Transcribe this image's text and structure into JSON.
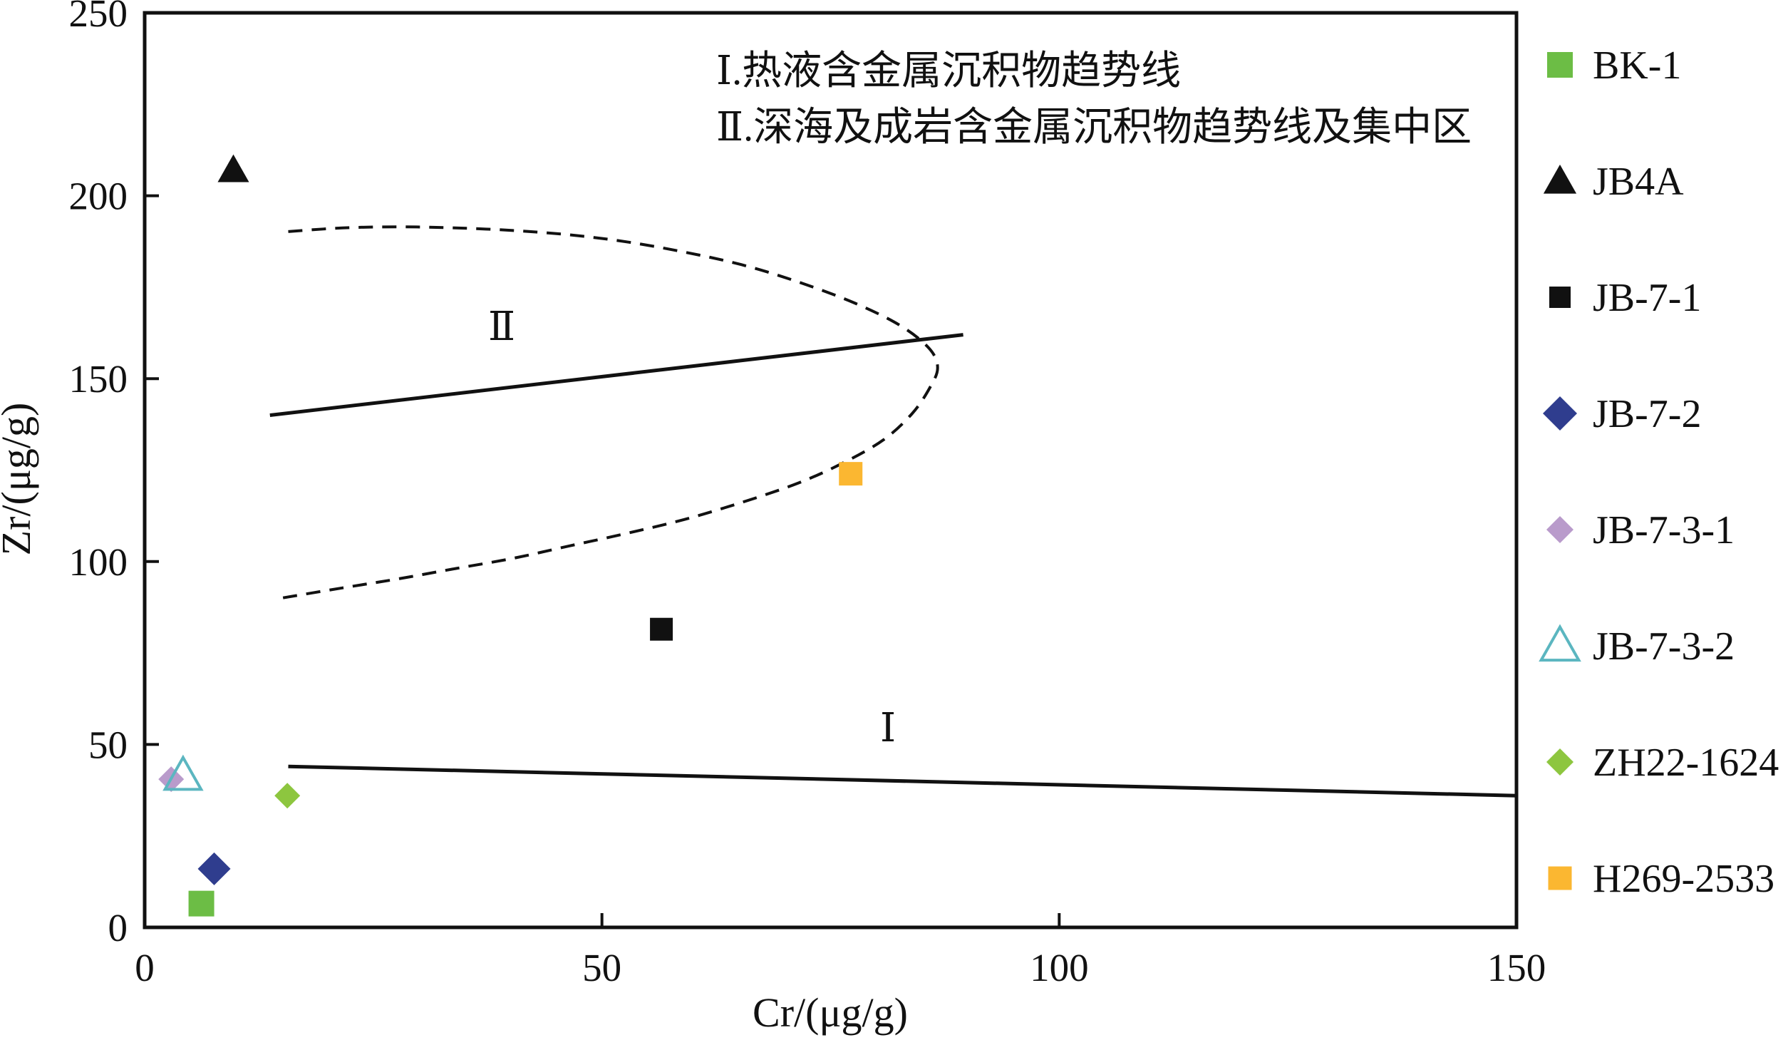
{
  "chart_data": {
    "type": "scatter",
    "xlabel": "Cr/(μg/g)",
    "ylabel": "Zr/(μg/g)",
    "xlim": [
      0,
      150
    ],
    "ylim": [
      0,
      250
    ],
    "xticks": [
      "0",
      "50",
      "100",
      "150"
    ],
    "yticks": [
      "0",
      "50",
      "100",
      "150",
      "200",
      "250"
    ],
    "grid": false,
    "legend_position": "right",
    "series": [
      {
        "name": "BK-1",
        "marker": "square",
        "filled": true,
        "color": "#6CBD45",
        "points": [
          [
            6.2,
            6.5
          ]
        ]
      },
      {
        "name": "JB4A",
        "marker": "triangle",
        "filled": true,
        "color": "#111111",
        "points": [
          [
            9.7,
            207
          ]
        ]
      },
      {
        "name": "JB-7-1",
        "marker": "square",
        "filled": true,
        "color": "#111111",
        "points": [
          [
            56.5,
            81.5
          ]
        ]
      },
      {
        "name": "JB-7-2",
        "marker": "diamond",
        "filled": true,
        "color": "#2F3D8E",
        "points": [
          [
            7.6,
            16
          ]
        ]
      },
      {
        "name": "JB-7-3-1",
        "marker": "diamond",
        "filled": true,
        "color": "#B99BCB",
        "points": [
          [
            2.9,
            40.5
          ]
        ]
      },
      {
        "name": "JB-7-3-2",
        "marker": "triangle",
        "filled": false,
        "color": "#5BB6C0",
        "points": [
          [
            4.2,
            41.5
          ]
        ]
      },
      {
        "name": "ZH22-1624",
        "marker": "diamond",
        "filled": true,
        "color": "#8DC63F",
        "points": [
          [
            15.6,
            36
          ]
        ]
      },
      {
        "name": "H269-2533",
        "marker": "square",
        "filled": true,
        "color": "#FBB731",
        "points": [
          [
            77.2,
            124
          ]
        ]
      }
    ],
    "trend_lines": [
      {
        "label": "Ⅰ",
        "points": [
          [
            15.7,
            44
          ],
          [
            150,
            36
          ]
        ]
      },
      {
        "label": "Ⅱ",
        "points": [
          [
            13.7,
            140
          ],
          [
            89.5,
            162
          ]
        ]
      }
    ],
    "concentration_zone_II": {
      "dashed": true,
      "points": [
        [
          15.7,
          190.2
        ],
        [
          21.6,
          191.2
        ],
        [
          27.8,
          191.5
        ],
        [
          34.0,
          191.2
        ],
        [
          40.3,
          190.5
        ],
        [
          46.5,
          189.3
        ],
        [
          52.7,
          187.4
        ],
        [
          59.0,
          184.6
        ],
        [
          65.2,
          181.2
        ],
        [
          71.4,
          176.5
        ],
        [
          77.7,
          170.6
        ],
        [
          82.7,
          164.4
        ],
        [
          85.8,
          158.2
        ],
        [
          86.7,
          152.9
        ],
        [
          85.8,
          147.3
        ],
        [
          83.9,
          140.4
        ],
        [
          80.8,
          133.3
        ],
        [
          76.4,
          127.0
        ],
        [
          71.4,
          121.4
        ],
        [
          65.2,
          116.1
        ],
        [
          59.0,
          111.5
        ],
        [
          52.7,
          107.7
        ],
        [
          46.5,
          104.3
        ],
        [
          40.3,
          100.9
        ],
        [
          34.0,
          98.1
        ],
        [
          27.8,
          95.3
        ],
        [
          21.6,
          92.8
        ],
        [
          14.2,
          89.7
        ]
      ]
    },
    "annotations": [
      "Ⅰ.热液含金属沉积物趋势线",
      "Ⅱ.深海及成岩含金属沉积物趋势线及集中区"
    ]
  }
}
